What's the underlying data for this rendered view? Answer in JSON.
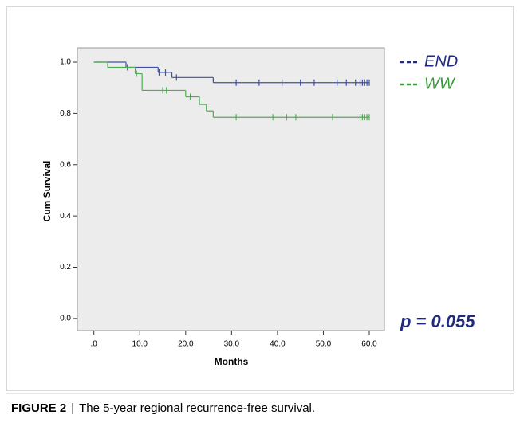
{
  "chart_data": {
    "type": "kaplan-meier",
    "xlabel": "Months",
    "ylabel": "Cum Survival",
    "xlim": [
      -3.6,
      63.3
    ],
    "ylim": [
      -0.047,
      1.056
    ],
    "xticks": [
      {
        "value": 0,
        "label": ".0"
      },
      {
        "value": 10,
        "label": "10.0"
      },
      {
        "value": 20,
        "label": "20.0"
      },
      {
        "value": 30,
        "label": "30.0"
      },
      {
        "value": 40,
        "label": "40.0"
      },
      {
        "value": 50,
        "label": "50.0"
      },
      {
        "value": 60,
        "label": "60.0"
      }
    ],
    "yticks": [
      {
        "value": 0,
        "label": "0.0"
      },
      0.2,
      0.4,
      0.6,
      0.8,
      {
        "value": 1,
        "label": "1.0"
      }
    ],
    "annotation": "p = 0.055",
    "series": [
      {
        "name": "END",
        "color": "#3f51a8",
        "text_color": "#1f2a80",
        "x": [
          0,
          7,
          14,
          17,
          26,
          60
        ],
        "values": [
          1,
          0.98,
          0.96,
          0.94,
          0.92,
          0.92
        ],
        "censored_x": [
          7.3,
          14.2,
          15.6,
          18,
          31,
          36,
          41,
          45,
          48,
          53,
          55,
          57,
          58,
          58.5,
          59,
          59.5,
          60
        ],
        "censored_values": [
          0.98,
          0.96,
          0.96,
          0.94,
          0.92,
          0.92,
          0.92,
          0.92,
          0.92,
          0.92,
          0.92,
          0.92,
          0.92,
          0.92,
          0.92,
          0.92,
          0.92
        ]
      },
      {
        "name": "WW",
        "color": "#4caf50",
        "text_color": "#3a9a3a",
        "x": [
          0,
          3,
          9,
          10.5,
          20,
          23,
          24.5,
          26,
          60
        ],
        "values": [
          1,
          0.98,
          0.955,
          0.89,
          0.865,
          0.835,
          0.81,
          0.785,
          0.785
        ],
        "censored_x": [
          9.3,
          15,
          15.8,
          21,
          31,
          39,
          42,
          44,
          52,
          58,
          58.5,
          59,
          59.5,
          60
        ],
        "censored_values": [
          0.955,
          0.89,
          0.89,
          0.865,
          0.785,
          0.785,
          0.785,
          0.785,
          0.785,
          0.785,
          0.785,
          0.785,
          0.785,
          0.785
        ]
      }
    ]
  },
  "caption": {
    "label": "FIGURE 2",
    "separator": "|",
    "text": "The 5-year regional recurrence-free survival."
  }
}
